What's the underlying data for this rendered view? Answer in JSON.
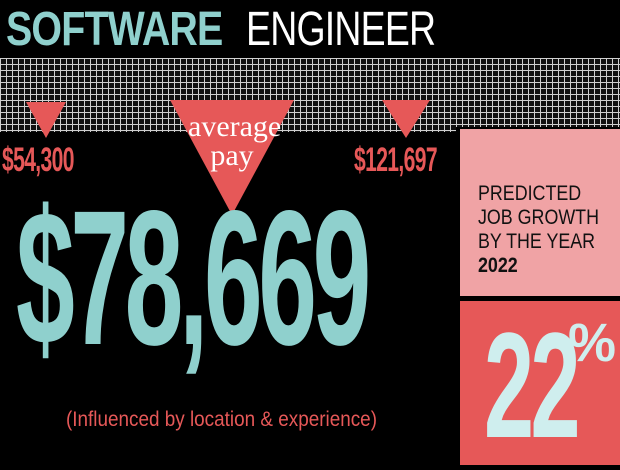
{
  "header": {
    "title_bold": "SOFTWARE",
    "title_light": "ENGINEER"
  },
  "pay": {
    "min": "$54,300",
    "average_label": "average pay",
    "average": "$78,669",
    "max": "$121,697",
    "note": "(Influenced by location & experience)"
  },
  "growth": {
    "lines": [
      "PREDICTED",
      "JOB GROWTH",
      "BY THE YEAR"
    ],
    "year": "2022",
    "value": "22",
    "unit": "%"
  },
  "colors": {
    "background": "#000000",
    "teal": "#8fd0cd",
    "red": "#e65858",
    "pink": "#f0a3a5"
  }
}
